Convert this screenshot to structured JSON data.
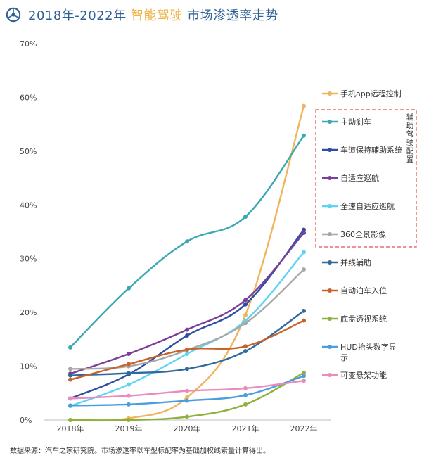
{
  "header": {
    "title_prefix": "2018年-2022年 ",
    "title_highlight": "智能驾驶",
    "title_suffix": " 市场渗透率走势"
  },
  "footnote": "数据来源：汽车之家研究院。市场渗透率以车型标配率为基础加权线索量计算得出。",
  "legend_group_label": "辅助驾驶配置",
  "chart_data": {
    "type": "line",
    "title": "2018年-2022年 智能驾驶 市场渗透率走势",
    "xlabel": "",
    "ylabel": "",
    "categories": [
      "2018年",
      "2019年",
      "2020年",
      "2021年",
      "2022年"
    ],
    "y_ticks": [
      "0%",
      "10%",
      "20%",
      "30%",
      "40%",
      "50%",
      "60%",
      "70%"
    ],
    "ylim": [
      0,
      70
    ],
    "grid": false,
    "legend_position": "right",
    "series": [
      {
        "name": "手机app远程控制",
        "color": "#f0b45c",
        "grouped": false,
        "values": [
          0.0,
          0.3,
          4.2,
          19.5,
          58.4
        ]
      },
      {
        "name": "主动刹车",
        "color": "#3ba7b3",
        "grouped": true,
        "values": [
          13.5,
          24.5,
          33.2,
          37.8,
          52.9
        ]
      },
      {
        "name": "车道保持辅助系统",
        "color": "#2d4fa3",
        "grouped": true,
        "values": [
          4.0,
          8.5,
          15.7,
          21.5,
          35.4
        ]
      },
      {
        "name": "自适应巡航",
        "color": "#7a3f98",
        "grouped": true,
        "values": [
          8.6,
          12.3,
          16.8,
          22.3,
          34.8
        ]
      },
      {
        "name": "全速自适应巡航",
        "color": "#5fd3f3",
        "grouped": true,
        "values": [
          2.6,
          6.6,
          12.3,
          18.5,
          31.2
        ]
      },
      {
        "name": "360全景影像",
        "color": "#a8a8a8",
        "grouped": true,
        "values": [
          9.5,
          10.0,
          13.0,
          18.0,
          28.0
        ]
      },
      {
        "name": "并线辅助",
        "color": "#2e6a9b",
        "grouped": false,
        "values": [
          8.3,
          8.7,
          9.5,
          12.8,
          20.3
        ]
      },
      {
        "name": "自动泊车入位",
        "color": "#c8622b",
        "grouped": false,
        "values": [
          7.5,
          10.4,
          13.1,
          13.7,
          18.5
        ]
      },
      {
        "name": "底盘透视系统",
        "color": "#8fb03a",
        "grouped": false,
        "values": [
          0.0,
          0.0,
          0.6,
          2.9,
          8.8
        ]
      },
      {
        "name": "HUD抬头数字显示",
        "color": "#4a9ee0",
        "grouped": false,
        "values": [
          2.7,
          2.9,
          3.6,
          4.6,
          8.2
        ]
      },
      {
        "name": "可变悬架功能",
        "color": "#e98bbb",
        "grouped": false,
        "values": [
          4.0,
          4.5,
          5.4,
          5.9,
          7.3
        ]
      }
    ]
  }
}
